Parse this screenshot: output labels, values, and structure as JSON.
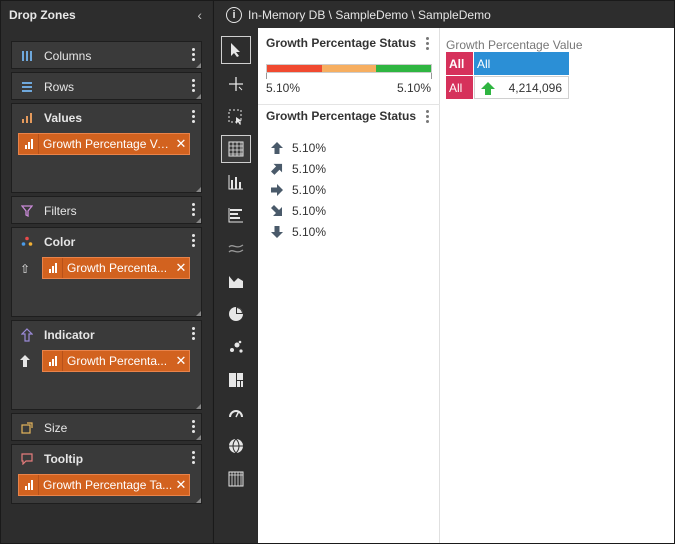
{
  "dropzones": {
    "title": "Drop Zones",
    "collapse_glyph": "‹",
    "columns_label": "Columns",
    "rows_label": "Rows",
    "values_label": "Values",
    "values_chip": "Growth Percentage Va...",
    "filters_label": "Filters",
    "color_label": "Color",
    "color_chip": "Growth Percenta...",
    "indicator_label": "Indicator",
    "indicator_chip": "Growth Percenta...",
    "size_label": "Size",
    "tooltip_label": "Tooltip",
    "tooltip_chip": "Growth Percentage Ta...",
    "close_glyph": "✕",
    "up_outline_glyph": "⇧",
    "up_solid_glyph": "🠉"
  },
  "header": {
    "info_glyph": "i",
    "path": "In-Memory DB \\ SampleDemo \\ SampleDemo"
  },
  "toolbar": {
    "items": [
      "pointer-icon",
      "crosshair-icon",
      "select-region-icon",
      "grid-icon",
      "column-chart-icon",
      "bar-chart-icon",
      "line-chart-icon",
      "area-chart-icon",
      "pie-chart-icon",
      "scatter-icon",
      "treemap-icon",
      "gauge-icon",
      "globe-icon",
      "more-icon"
    ],
    "selected": "grid-icon"
  },
  "kpi_panel": {
    "title": "Growth Percentage Status",
    "colors": [
      "#f04a30",
      "#f6ae60",
      "#2fb541"
    ],
    "min": "5.10%",
    "max": "5.10%"
  },
  "legend_panel": {
    "title": "Growth Percentage Status",
    "items": [
      {
        "icon": "arrow-up-icon",
        "label": "5.10%"
      },
      {
        "icon": "arrow-up-right-icon",
        "label": "5.10%"
      },
      {
        "icon": "arrow-right-icon",
        "label": "5.10%"
      },
      {
        "icon": "arrow-down-right-icon",
        "label": "5.10%"
      },
      {
        "icon": "arrow-down-icon",
        "label": "5.10%"
      }
    ]
  },
  "grid_panel": {
    "title": "Growth Percentage Value",
    "row_header": "All",
    "col_header": "All",
    "row_value_header": "All",
    "value": "4,214,096",
    "indicator_color": "#2fb541"
  }
}
